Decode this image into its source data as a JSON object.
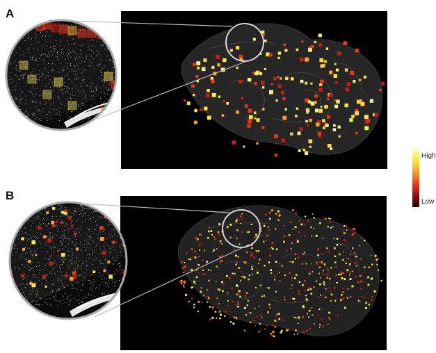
{
  "panels": {
    "a": {
      "label": "A"
    },
    "b": {
      "label": "B"
    }
  },
  "color_scale": {
    "high_label": "High",
    "low_label": "Low",
    "colors": [
      "#fffbd0",
      "#f5ee3a",
      "#f6a12a",
      "#e8361c",
      "#8a0a0a",
      "#2a0000"
    ]
  }
}
